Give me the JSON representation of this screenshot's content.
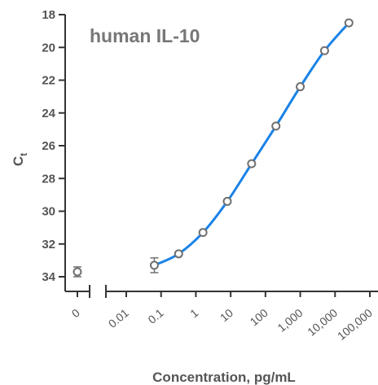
{
  "chart_data": {
    "type": "line",
    "title": "human IL-10",
    "ylabel_main": "C",
    "ylabel_sub": "t",
    "xlabel": "Concentration, pg/mL",
    "x_scale": "log",
    "y_reversed": true,
    "ylim": [
      18,
      35
    ],
    "yticks": [
      18,
      20,
      22,
      24,
      26,
      28,
      30,
      32,
      34
    ],
    "ytick_labels": [
      "18",
      "20",
      "22",
      "24",
      "26",
      "28",
      "30",
      "32",
      "34"
    ],
    "x_zero_tick_label": "0",
    "xticks": [
      0.01,
      0.1,
      1,
      10,
      100,
      1000,
      10000,
      100000
    ],
    "xtick_labels": [
      "0.01",
      "0.1",
      "1",
      "10",
      "100",
      "1,000",
      "10,000",
      "100,000"
    ],
    "zero_point": {
      "x": 0,
      "y": 33.7,
      "err": 0.3
    },
    "points": [
      {
        "x": 0.064,
        "y": 33.3,
        "err": 0.45
      },
      {
        "x": 0.32,
        "y": 32.6,
        "err": 0.0
      },
      {
        "x": 1.6,
        "y": 31.3,
        "err": 0.0
      },
      {
        "x": 8,
        "y": 29.4,
        "err": 0.0
      },
      {
        "x": 40,
        "y": 27.1,
        "err": 0.0
      },
      {
        "x": 200,
        "y": 24.8,
        "err": 0.0
      },
      {
        "x": 1000,
        "y": 22.4,
        "err": 0.0
      },
      {
        "x": 5000,
        "y": 20.2,
        "err": 0.0
      },
      {
        "x": 25000,
        "y": 18.5,
        "err": 0.0
      }
    ],
    "fit_color": "#1a82e8",
    "marker_color": "#707070",
    "axis_color": "#333333",
    "grid": false,
    "legend": "none"
  }
}
